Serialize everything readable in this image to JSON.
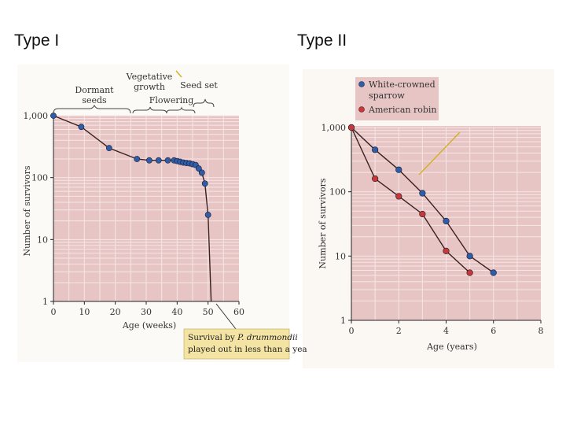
{
  "titles": {
    "left": "Type I",
    "right": "Type II"
  },
  "chart_data": [
    {
      "type": "line",
      "title": "Type I",
      "xlabel": "Age (weeks)",
      "ylabel": "Number of survivors",
      "xlim": [
        0,
        60
      ],
      "ylim": [
        1,
        1000
      ],
      "yscale": "log",
      "x_ticks": [
        0,
        10,
        20,
        30,
        40,
        50,
        60
      ],
      "y_ticks": [
        1,
        10,
        100,
        1000
      ],
      "y_tick_labels": [
        "1",
        "10",
        "100",
        "1,000"
      ],
      "series": [
        {
          "name": "P. drummondii",
          "color": "#2f5da8",
          "x": [
            0,
            9,
            18,
            27,
            31,
            34,
            37,
            39,
            40,
            41,
            42,
            43,
            44,
            45,
            46,
            47,
            48,
            49,
            50
          ],
          "y": [
            1000,
            660,
            300,
            200,
            190,
            190,
            190,
            190,
            185,
            180,
            175,
            172,
            170,
            165,
            160,
            140,
            120,
            80,
            25
          ]
        }
      ],
      "drop_to_axis": {
        "x": 51,
        "y": 1
      },
      "phase_labels": [
        {
          "lines": [
            "Dormant",
            "seeds"
          ]
        },
        {
          "lines": [
            "Vegetative",
            "growth"
          ]
        },
        {
          "lines": [
            "Flowering"
          ]
        },
        {
          "lines": [
            "Seed set"
          ]
        }
      ],
      "annotation": {
        "prefix": "Survival by ",
        "species": "P. drummondii",
        "line2": "played out in less than a yea"
      }
    },
    {
      "type": "line",
      "title": "Type II",
      "xlabel": "Age (years)",
      "ylabel": "Number of survivors",
      "xlim": [
        0,
        8
      ],
      "ylim": [
        1,
        1000
      ],
      "yscale": "log",
      "x_ticks": [
        0,
        2,
        4,
        6,
        8
      ],
      "y_ticks": [
        1,
        10,
        100,
        1000
      ],
      "y_tick_labels": [
        "1",
        "10",
        "100",
        "1,000"
      ],
      "series": [
        {
          "name": "White-crowned sparrow",
          "color": "#2f5da8",
          "x": [
            0,
            1,
            2,
            3,
            4,
            5,
            6
          ],
          "y": [
            1000,
            450,
            220,
            95,
            35,
            10,
            5.5
          ]
        },
        {
          "name": "American robin",
          "color": "#c93838",
          "x": [
            0,
            1,
            2,
            3,
            4,
            5
          ],
          "y": [
            1000,
            160,
            85,
            45,
            12,
            5.5
          ]
        }
      ],
      "legend": {
        "position": "top-left",
        "entries": [
          "White-crowned sparrow",
          "American robin"
        ]
      }
    }
  ]
}
